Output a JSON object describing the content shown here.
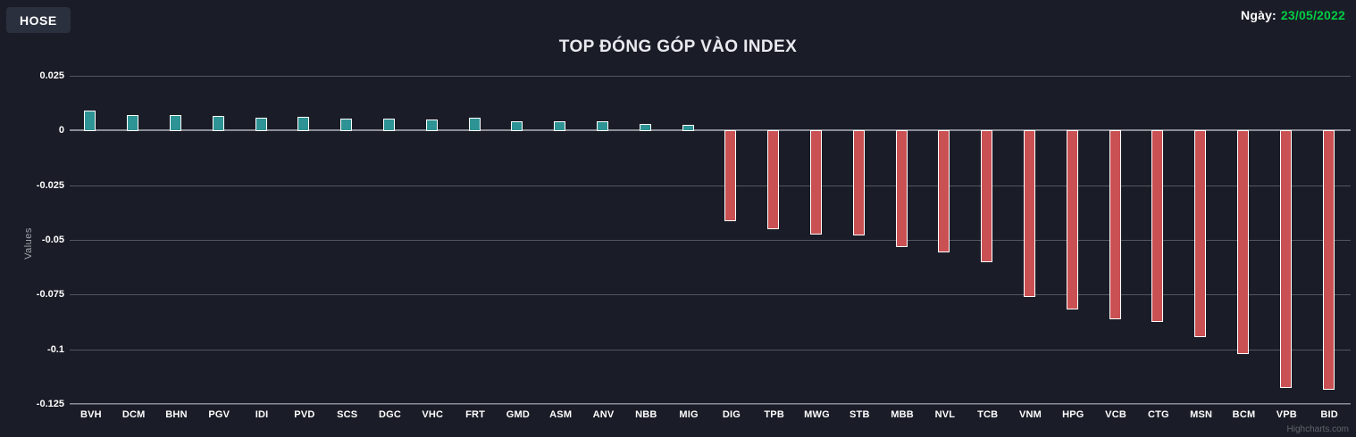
{
  "header": {
    "exchange_button_label": "HOSE",
    "title": "TOP ĐÓNG GÓP VÀO INDEX",
    "date_label": "Ngày:",
    "date_value": "23/05/2022"
  },
  "colors": {
    "background": "#1a1d27",
    "button_background": "#2a303e",
    "date_green": "#00cc44",
    "positive_bar": "#2e9394",
    "negative_bar": "#ca5153",
    "gridline": "#53565f",
    "axis_line": "#8a8d95"
  },
  "chart_data": {
    "type": "bar",
    "title": "TOP ĐÓNG GÓP VÀO INDEX",
    "xlabel": "",
    "ylabel": "Values",
    "ylim": [
      -0.125,
      0.025
    ],
    "grid": true,
    "legend": false,
    "credit": "Highcharts.com",
    "positive_color": "#2e9394",
    "negative_color": "#ca5153",
    "yticks": [
      {
        "label": "0.025",
        "value": 0.025
      },
      {
        "label": "0",
        "value": 0
      },
      {
        "label": "-0.025",
        "value": -0.025
      },
      {
        "label": "-0.05",
        "value": -0.05
      },
      {
        "label": "-0.075",
        "value": -0.075
      },
      {
        "label": "-0.1",
        "value": -0.1
      },
      {
        "label": "-0.125",
        "value": -0.125
      }
    ],
    "categories": [
      "BVH",
      "DCM",
      "BHN",
      "PGV",
      "IDI",
      "PVD",
      "SCS",
      "DGC",
      "VHC",
      "FRT",
      "GMD",
      "ASM",
      "ANV",
      "NBB",
      "MIG",
      "DIG",
      "TPB",
      "MWG",
      "STB",
      "MBB",
      "NVL",
      "TCB",
      "VNM",
      "HPG",
      "VCB",
      "CTG",
      "MSN",
      "BCM",
      "VPB",
      "BID"
    ],
    "values": [
      0.009,
      0.0072,
      0.0069,
      0.0066,
      0.006,
      0.0062,
      0.0055,
      0.0053,
      0.0049,
      0.0057,
      0.0042,
      0.0042,
      0.0042,
      0.0029,
      0.0024,
      -0.0416,
      -0.045,
      -0.0474,
      -0.048,
      -0.0532,
      -0.0558,
      -0.0603,
      -0.0762,
      -0.0817,
      -0.0864,
      -0.0875,
      -0.0946,
      -0.1023,
      -0.1177,
      -0.1184
    ]
  }
}
